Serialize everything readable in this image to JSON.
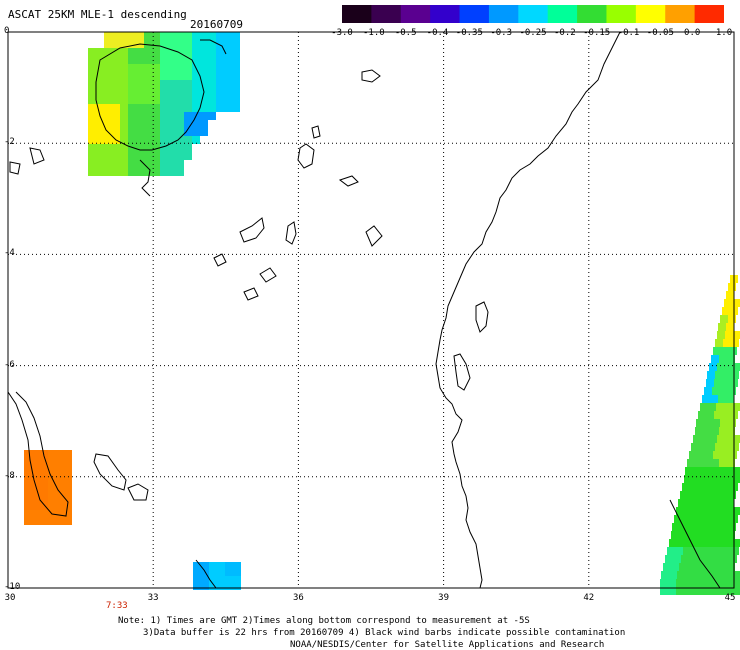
{
  "header": {
    "title": "ASCAT 25KM MLE-1 descending",
    "date": "20160709"
  },
  "colorbar": {
    "labels": [
      "-3.0",
      "-1.0",
      "-0.5",
      "-0.4",
      "-0.35",
      "-0.3",
      "-0.25",
      "-0.2",
      "-0.15",
      "-0.1",
      "-0.05",
      "0.0",
      "1.0"
    ],
    "colors": [
      "#1a001a",
      "#3a0050",
      "#5a0090",
      "#3300cc",
      "#0040ff",
      "#0099ff",
      "#00d8ff",
      "#00ff99",
      "#33dd33",
      "#99ff00",
      "#ffff00",
      "#ffa000",
      "#ff2a00"
    ]
  },
  "axes": {
    "lat_ticks": [
      "0",
      "-2",
      "-4",
      "-6",
      "-8",
      "-10"
    ],
    "lon_ticks": [
      "30",
      "33",
      "36",
      "39",
      "42",
      "45"
    ]
  },
  "time_label": "7:33",
  "notes": {
    "line1": "Note: 1) Times are GMT 2)Times along bottom correspond to measurement at -5S",
    "line2": "3)Data buffer is 22 hrs from 20160709 4) Black wind barbs indicate possible contamination",
    "line3": "NOAA/NESDIS/Center for Satellite Applications and Research"
  },
  "palette": {
    "orange": "#ff7f00",
    "cyan": "#00ccff",
    "sky": "#00aaff",
    "green": "#22dd22",
    "yellowgreen": "#88ee22",
    "yellow": "#ffee00",
    "lightgreen": "#33ff88"
  }
}
